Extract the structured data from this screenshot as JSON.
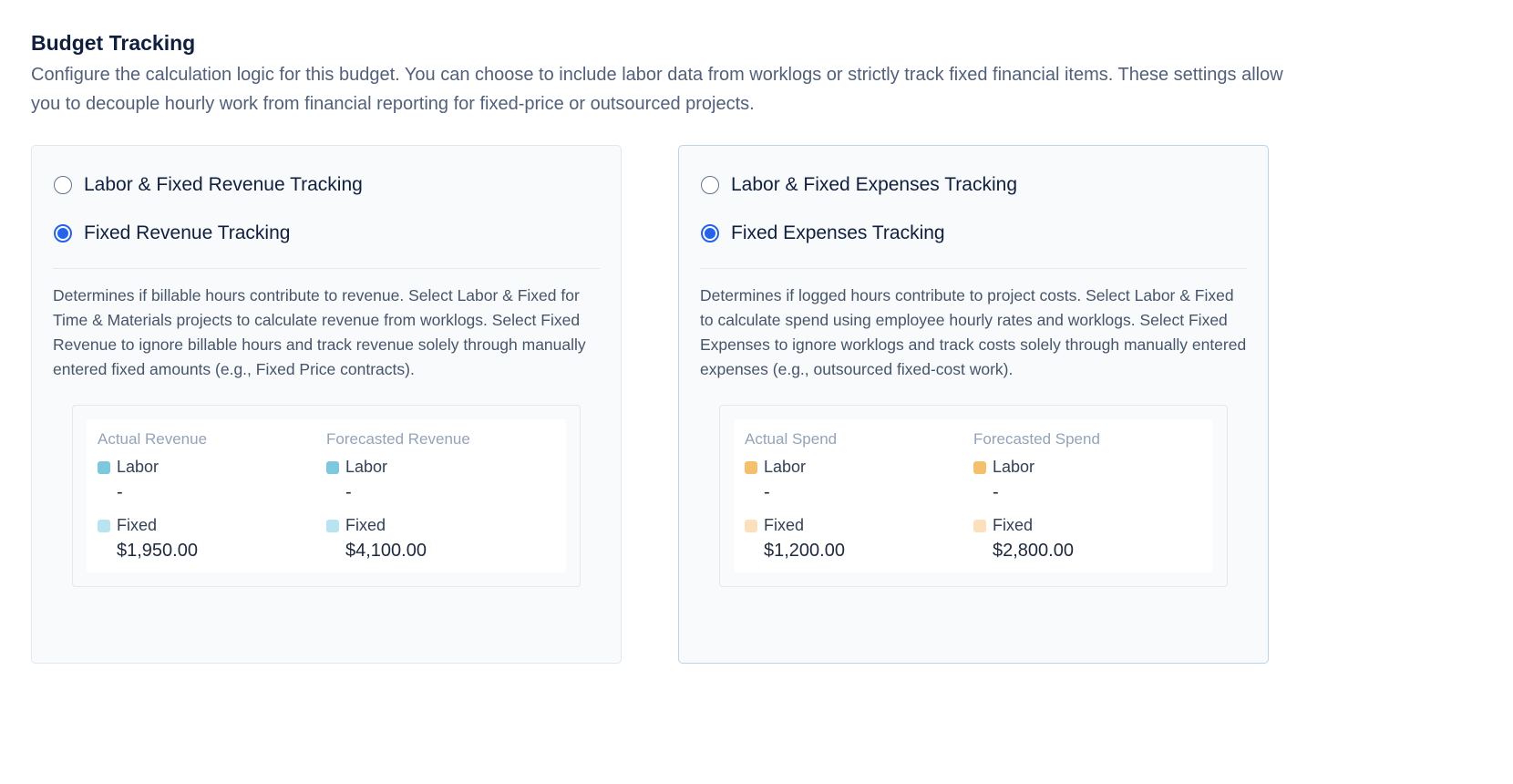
{
  "header": {
    "title": "Budget Tracking",
    "description": "Configure the calculation logic for this budget. You can choose to include labor data from worklogs or strictly track fixed financial items. These settings allow you to decouple hourly work from financial reporting for fixed-price or outsourced projects."
  },
  "panels": [
    {
      "options": [
        {
          "label": "Labor & Fixed Revenue Tracking",
          "selected": false
        },
        {
          "label": "Fixed Revenue Tracking",
          "selected": true
        }
      ],
      "description": "Determines if billable hours contribute to revenue. Select Labor & Fixed for Time & Materials projects to calculate revenue from worklogs. Select Fixed Revenue to ignore billable hours and track revenue solely through manually entered fixed amounts (e.g., Fixed Price contracts).",
      "labor_color": "#7ec8df",
      "fixed_color": "#b9e3f0",
      "preview": [
        {
          "heading": "Actual Revenue",
          "items": [
            {
              "label": "Labor",
              "value": "-"
            },
            {
              "label": "Fixed",
              "value": "$1,950.00"
            }
          ]
        },
        {
          "heading": "Forecasted Revenue",
          "items": [
            {
              "label": "Labor",
              "value": "-"
            },
            {
              "label": "Fixed",
              "value": "$4,100.00"
            }
          ]
        }
      ]
    },
    {
      "options": [
        {
          "label": "Labor & Fixed Expenses Tracking",
          "selected": false
        },
        {
          "label": "Fixed Expenses Tracking",
          "selected": true
        }
      ],
      "description": "Determines if logged hours contribute to project costs. Select Labor & Fixed to calculate spend using employee hourly rates and worklogs. Select Fixed Expenses to ignore worklogs and track costs solely through manually entered expenses (e.g., outsourced fixed-cost work).",
      "labor_color": "#f5c06e",
      "fixed_color": "#fbe0bd",
      "preview": [
        {
          "heading": "Actual Spend",
          "items": [
            {
              "label": "Labor",
              "value": "-"
            },
            {
              "label": "Fixed",
              "value": "$1,200.00"
            }
          ]
        },
        {
          "heading": "Forecasted Spend",
          "items": [
            {
              "label": "Labor",
              "value": "-"
            },
            {
              "label": "Fixed",
              "value": "$2,800.00"
            }
          ]
        }
      ]
    }
  ]
}
